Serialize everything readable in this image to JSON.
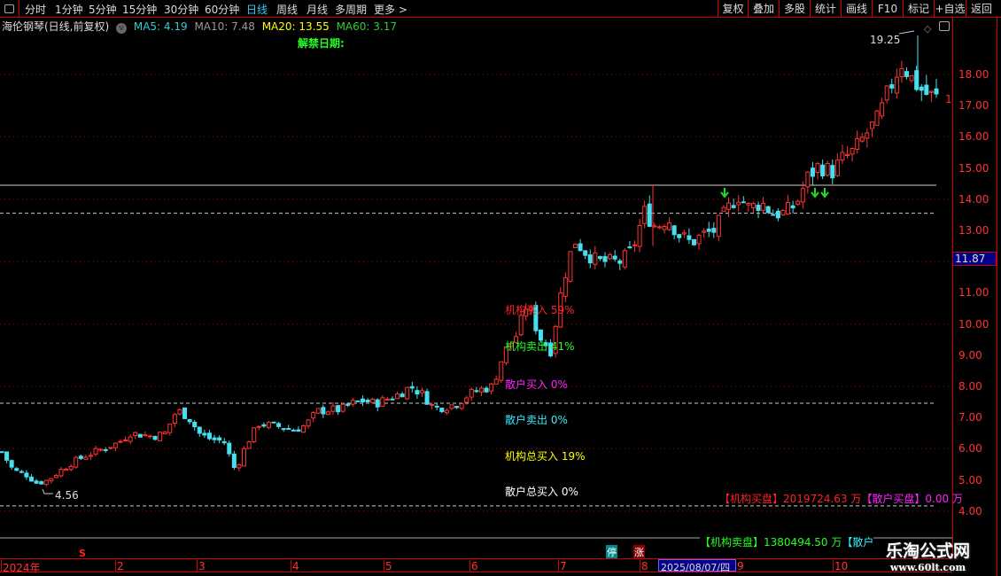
{
  "toolbar": {
    "periods": [
      "分时",
      "1分钟",
      "5分钟",
      "15分钟",
      "30分钟",
      "60分钟",
      "日线",
      "周线",
      "月线",
      "多周期",
      "更多 >"
    ],
    "active": "日线",
    "right": [
      "复权",
      "叠加",
      "多股",
      "统计",
      "画线",
      "F10",
      "标记",
      "+自选",
      "返回"
    ]
  },
  "info": {
    "title": "海伦钢琴(日线,前复权)",
    "ma5": "MA5: 4.19",
    "ma10": "MA10: 7.48",
    "ma20": "MA20: 13.55",
    "ma60": "MA60: 3.17",
    "unlock": "解禁日期:"
  },
  "colors": {
    "up": "#ff3333",
    "down": "#44e0f0",
    "ma5": "#3cc",
    "ma10": "#999",
    "ma20": "#ff0",
    "ma60": "#3c3"
  },
  "annotations": {
    "high": "19.25",
    "low": "4.56",
    "right_tick": "1"
  },
  "indicators": [
    {
      "text": "机构买入 59%",
      "color": "#f22"
    },
    {
      "text": "机构卖出 41%",
      "color": "#2f2"
    },
    {
      "text": "散户买入 0%",
      "color": "#f2f"
    },
    {
      "text": "散户卖出 0%",
      "color": "#3ef"
    },
    {
      "text": "机构总买入 19%",
      "color": "#ff0"
    },
    {
      "text": "散户总买入 0%",
      "color": "#fff"
    }
  ],
  "lower": {
    "inst_buy_label": "【机构买盘】",
    "inst_buy": "2019724.63 万",
    "retail_buy_label": "【散户买盘】",
    "retail_buy": "0.00 万",
    "inst_sell_label": "【机构卖盘】",
    "inst_sell": "1380494.50 万",
    "retail_sell_label": "【散户"
  },
  "markers": {
    "stop": "停",
    "limit_up": "涨",
    "s": "S"
  },
  "yaxis": {
    "labels": [
      "18.00",
      "17.00",
      "16.00",
      "15.00",
      "14.00",
      "13.00",
      "11.00",
      "10.00",
      "9.00",
      "8.00",
      "7.00",
      "6.00",
      "5.00",
      "4.00"
    ],
    "current": "11.87"
  },
  "xaxis": {
    "months": [
      "2024年",
      "2",
      "3",
      "4",
      "5",
      "6",
      "7",
      "8",
      "9",
      "10"
    ],
    "cursor_date": "2025/08/07/四"
  },
  "watermark": {
    "name": "乐淘公式网",
    "url": "www.60lt.com"
  },
  "chart_data": {
    "type": "candlestick",
    "ylim": [
      3.5,
      19.5
    ],
    "closes": [
      5.9,
      5.3,
      5.2,
      4.9,
      5.0,
      5.3,
      5.55,
      5.75,
      5.9,
      6.05,
      6.2,
      6.5,
      6.45,
      6.4,
      6.5,
      7.25,
      7.0,
      6.45,
      6.3,
      6.25,
      5.3,
      6.2,
      6.8,
      6.75,
      6.7,
      6.6,
      6.75,
      7.2,
      7.25,
      7.25,
      7.45,
      7.55,
      7.45,
      7.6,
      7.75,
      8.0,
      7.75,
      7.3,
      7.35,
      7.45,
      7.75,
      7.9,
      8.0,
      9.1,
      9.6,
      10.7,
      9.6,
      9.15,
      11.3,
      12.7,
      12.3,
      12.0,
      12.0,
      12.0,
      12.4,
      13.6,
      13.1,
      13.4,
      12.85,
      12.6,
      12.85,
      13.0,
      13.6,
      14.15,
      13.7,
      13.9,
      13.55,
      13.55,
      13.85,
      14.7,
      15.1,
      14.85,
      15.3,
      15.55,
      16.1,
      16.55,
      17.55,
      18.4,
      17.8,
      17.4,
      17.25
    ],
    "high": 19.25,
    "low": 4.56,
    "levels": {
      "solid": 14.45,
      "dashed": [
        13.55,
        7.46,
        4.17
      ]
    }
  }
}
